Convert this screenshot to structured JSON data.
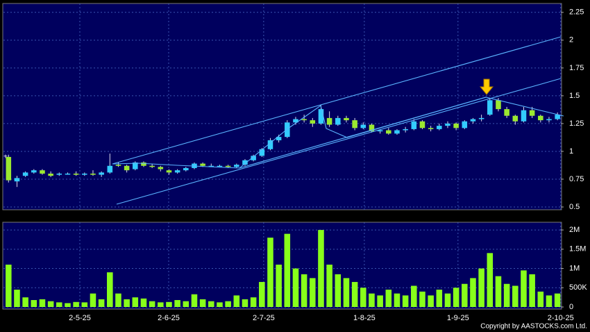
{
  "chart_data": {
    "type": "candlestick",
    "open": [
      0.95,
      0.73,
      0.78,
      0.81,
      0.83,
      0.8,
      0.79,
      0.8,
      0.8,
      0.79,
      0.8,
      0.79,
      0.81,
      0.88,
      0.87,
      0.84,
      0.9,
      0.87,
      0.86,
      0.83,
      0.81,
      0.83,
      0.85,
      0.89,
      0.87,
      0.87,
      0.87,
      0.86,
      0.88,
      0.92,
      0.96,
      1.02,
      1.1,
      1.13,
      1.26,
      1.29,
      1.28,
      1.25,
      1.3,
      1.24,
      1.3,
      1.28,
      1.21,
      1.24,
      1.18,
      1.19,
      1.16,
      1.19,
      1.2,
      1.27,
      1.21,
      1.2,
      1.23,
      1.25,
      1.21,
      1.27,
      1.29,
      1.33,
      1.46,
      1.38,
      1.32,
      1.27,
      1.37,
      1.32,
      1.28,
      1.29
    ],
    "high": [
      0.97,
      0.78,
      0.82,
      0.84,
      0.84,
      0.82,
      0.81,
      0.81,
      0.82,
      0.81,
      0.83,
      0.82,
      0.98,
      0.9,
      0.88,
      0.91,
      0.91,
      0.89,
      0.87,
      0.84,
      0.84,
      0.86,
      0.9,
      0.9,
      0.89,
      0.88,
      0.88,
      0.89,
      0.93,
      0.97,
      1.03,
      1.12,
      1.15,
      1.28,
      1.31,
      1.33,
      1.3,
      1.42,
      1.36,
      1.32,
      1.32,
      1.3,
      1.26,
      1.25,
      1.2,
      1.21,
      1.2,
      1.22,
      1.29,
      1.28,
      1.23,
      1.25,
      1.27,
      1.26,
      1.28,
      1.3,
      1.33,
      1.48,
      1.48,
      1.4,
      1.33,
      1.4,
      1.4,
      1.33,
      1.31,
      1.35
    ],
    "low": [
      0.72,
      0.68,
      0.77,
      0.8,
      0.79,
      0.77,
      0.78,
      0.79,
      0.78,
      0.78,
      0.78,
      0.77,
      0.8,
      0.86,
      0.81,
      0.83,
      0.86,
      0.85,
      0.82,
      0.79,
      0.8,
      0.82,
      0.84,
      0.86,
      0.86,
      0.86,
      0.85,
      0.85,
      0.87,
      0.91,
      0.95,
      1.01,
      1.08,
      1.12,
      1.24,
      1.26,
      1.22,
      1.24,
      1.22,
      1.23,
      1.26,
      1.19,
      1.2,
      1.17,
      1.16,
      1.15,
      1.15,
      1.17,
      1.19,
      1.2,
      1.18,
      1.19,
      1.21,
      1.19,
      1.2,
      1.25,
      1.27,
      1.32,
      1.36,
      1.3,
      1.24,
      1.26,
      1.3,
      1.26,
      1.26,
      1.28
    ],
    "close": [
      0.74,
      0.76,
      0.81,
      0.83,
      0.8,
      0.78,
      0.8,
      0.8,
      0.79,
      0.8,
      0.79,
      0.81,
      0.87,
      0.87,
      0.83,
      0.9,
      0.87,
      0.86,
      0.84,
      0.81,
      0.83,
      0.85,
      0.89,
      0.87,
      0.87,
      0.87,
      0.86,
      0.88,
      0.92,
      0.96,
      1.02,
      1.1,
      1.13,
      1.26,
      1.29,
      1.28,
      1.25,
      1.38,
      1.24,
      1.3,
      1.28,
      1.21,
      1.24,
      1.18,
      1.19,
      1.16,
      1.19,
      1.2,
      1.27,
      1.21,
      1.2,
      1.23,
      1.25,
      1.21,
      1.27,
      1.29,
      1.3,
      1.46,
      1.38,
      1.32,
      1.27,
      1.37,
      1.32,
      1.28,
      1.29,
      1.33
    ],
    "volume": [
      1100000,
      450000,
      250000,
      180000,
      200000,
      150000,
      120000,
      100000,
      130000,
      120000,
      350000,
      200000,
      900000,
      350000,
      200000,
      250000,
      220000,
      150000,
      120000,
      130000,
      180000,
      150000,
      330000,
      200000,
      150000,
      120000,
      150000,
      300000,
      200000,
      250000,
      650000,
      1800000,
      1100000,
      1900000,
      1000000,
      850000,
      750000,
      2000000,
      1100000,
      850000,
      750000,
      650000,
      500000,
      350000,
      300000,
      450000,
      350000,
      300000,
      550000,
      400000,
      300000,
      450000,
      350000,
      500000,
      600000,
      750000,
      1000000,
      1400000,
      800000,
      600000,
      550000,
      950000,
      850000,
      400000,
      300000,
      350000
    ],
    "up_color": "#33ccff",
    "down_color": "#9be830",
    "volume_color": "#88ff1a",
    "xlim": [
      -0.6,
      65.4
    ],
    "xticks": [
      {
        "value": 8.44,
        "label": "2-5-25"
      },
      {
        "value": 18.96,
        "label": "2-6-25"
      },
      {
        "value": 30.21,
        "label": "2-7-25"
      },
      {
        "value": 42.13,
        "label": "1-8-25"
      },
      {
        "value": 53.22,
        "label": "1-9-25"
      },
      {
        "value": 65.38,
        "label": "2-10-25"
      }
    ],
    "ylim": [
      0.475,
      2.33
    ],
    "yticks": [
      0.5,
      0.75,
      1,
      1.25,
      1.5,
      1.75,
      2,
      2.25
    ],
    "volume_ylim": [
      0,
      2200000
    ],
    "volume_yticks": [
      0,
      {
        "value": 500000,
        "label": "500K"
      },
      {
        "value": 1000000,
        "label": "1M"
      },
      {
        "value": 1500000,
        "label": "1.5M"
      },
      {
        "value": 2000000,
        "label": "2M"
      }
    ],
    "grid": true,
    "footer": "Copyright by AASTOCKS.com Ltd."
  }
}
